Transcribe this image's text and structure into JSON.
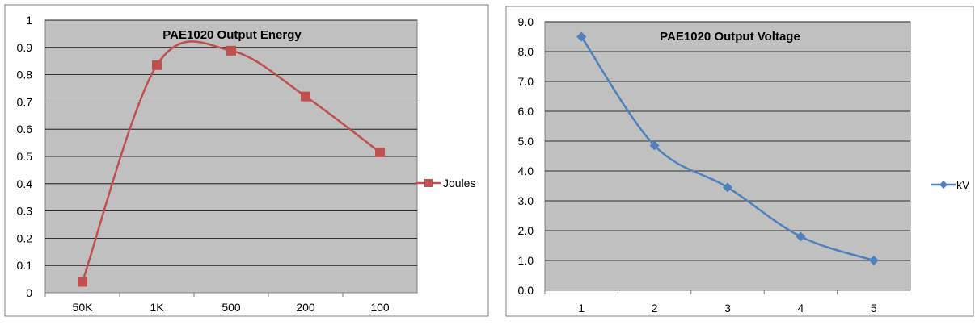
{
  "chart_data": [
    {
      "type": "line",
      "title": "PAE1020 Output Energy",
      "xlabel": "",
      "ylabel": "",
      "categories": [
        "50K",
        "1K",
        "500",
        "200",
        "100"
      ],
      "series": [
        {
          "name": "Joules",
          "values": [
            0.04,
            0.835,
            0.888,
            0.72,
            0.515
          ]
        }
      ],
      "ylim": [
        0,
        1
      ],
      "yticks": [
        "0",
        "0.1",
        "0.2",
        "0.3",
        "0.4",
        "0.5",
        "0.6",
        "0.7",
        "0.8",
        "0.9",
        "1"
      ],
      "smooth": true,
      "marker": "square",
      "grid": true,
      "legend": "right",
      "colors": {
        "series": "#c0504d",
        "plot_bg": "#c0c0c0",
        "grid": "#000000"
      }
    },
    {
      "type": "line",
      "title": "PAE1020 Output Voltage",
      "xlabel": "",
      "ylabel": "",
      "categories": [
        "1",
        "2",
        "3",
        "4",
        "5"
      ],
      "series": [
        {
          "name": "kV",
          "values": [
            8.5,
            4.85,
            3.45,
            1.8,
            1.0
          ]
        }
      ],
      "ylim": [
        0,
        9
      ],
      "yticks": [
        "0.0",
        "1.0",
        "2.0",
        "3.0",
        "4.0",
        "5.0",
        "6.0",
        "7.0",
        "8.0",
        "9.0"
      ],
      "smooth": true,
      "marker": "diamond",
      "grid": true,
      "legend": "right",
      "colors": {
        "series": "#4f81bd",
        "plot_bg": "#c0c0c0",
        "grid": "#000000"
      }
    }
  ]
}
